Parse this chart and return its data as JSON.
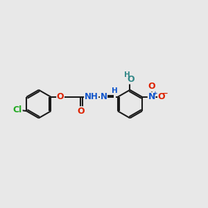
{
  "bg_color": "#e8e8e8",
  "bond_color": "#1a1a1a",
  "bond_lw": 1.5,
  "atom_colors": {
    "Cl": "#22aa22",
    "O": "#dd2200",
    "N_blue": "#1155cc",
    "OH_teal": "#338888",
    "NO2_N": "#1155cc",
    "NO2_O": "#dd2200"
  },
  "font_size": 8.5,
  "fig_w": 3.0,
  "fig_h": 3.0,
  "dpi": 100,
  "xlim": [
    0,
    12
  ],
  "ylim": [
    0,
    12
  ]
}
